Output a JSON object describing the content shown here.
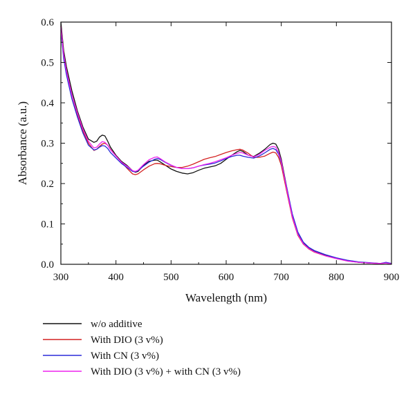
{
  "chart_data": {
    "type": "line",
    "title": "",
    "xlabel": "Wavelength (nm)",
    "ylabel": "Absorbance (a.u.)",
    "xlim": [
      300,
      900
    ],
    "ylim": [
      0.0,
      0.6
    ],
    "x_ticks": [
      "300",
      "400",
      "500",
      "600",
      "700",
      "800",
      "900"
    ],
    "y_ticks": [
      "0.0",
      "0.1",
      "0.2",
      "0.3",
      "0.4",
      "0.5",
      "0.6"
    ],
    "grid": false,
    "legend_position": "bottom",
    "x": [
      300,
      305,
      310,
      320,
      330,
      340,
      350,
      360,
      365,
      370,
      375,
      380,
      385,
      390,
      400,
      410,
      420,
      430,
      435,
      440,
      450,
      460,
      470,
      475,
      480,
      490,
      500,
      510,
      520,
      530,
      540,
      550,
      560,
      570,
      580,
      590,
      600,
      610,
      620,
      625,
      630,
      640,
      650,
      660,
      670,
      680,
      685,
      690,
      695,
      700,
      710,
      720,
      730,
      740,
      750,
      760,
      780,
      800,
      820,
      840,
      860,
      880,
      890,
      900
    ],
    "series": [
      {
        "name": "w/o additive",
        "color": "#111111",
        "values": [
          0.6,
          0.53,
          0.49,
          0.43,
          0.38,
          0.34,
          0.31,
          0.302,
          0.305,
          0.315,
          0.32,
          0.318,
          0.305,
          0.29,
          0.27,
          0.255,
          0.245,
          0.232,
          0.228,
          0.23,
          0.245,
          0.255,
          0.258,
          0.258,
          0.254,
          0.245,
          0.236,
          0.23,
          0.226,
          0.224,
          0.227,
          0.233,
          0.238,
          0.241,
          0.244,
          0.25,
          0.26,
          0.27,
          0.279,
          0.282,
          0.28,
          0.27,
          0.267,
          0.275,
          0.285,
          0.297,
          0.3,
          0.298,
          0.285,
          0.26,
          0.19,
          0.12,
          0.075,
          0.052,
          0.04,
          0.032,
          0.022,
          0.015,
          0.009,
          0.005,
          0.003,
          0.002,
          0.004,
          0.001
        ]
      },
      {
        "name": "With DIO (3 v%)",
        "color": "#d42020",
        "values": [
          0.59,
          0.52,
          0.48,
          0.42,
          0.37,
          0.33,
          0.3,
          0.282,
          0.285,
          0.292,
          0.298,
          0.3,
          0.295,
          0.285,
          0.268,
          0.253,
          0.238,
          0.224,
          0.222,
          0.224,
          0.234,
          0.243,
          0.249,
          0.25,
          0.249,
          0.245,
          0.242,
          0.24,
          0.24,
          0.243,
          0.248,
          0.254,
          0.26,
          0.264,
          0.267,
          0.272,
          0.277,
          0.281,
          0.284,
          0.285,
          0.283,
          0.275,
          0.265,
          0.265,
          0.268,
          0.275,
          0.278,
          0.276,
          0.265,
          0.245,
          0.18,
          0.115,
          0.072,
          0.05,
          0.038,
          0.03,
          0.021,
          0.014,
          0.008,
          0.005,
          0.003,
          0.002,
          0.003,
          0.001
        ]
      },
      {
        "name": "With CN (3 v%)",
        "color": "#2a2ad8",
        "values": [
          0.58,
          0.51,
          0.47,
          0.41,
          0.365,
          0.325,
          0.295,
          0.283,
          0.285,
          0.29,
          0.294,
          0.293,
          0.287,
          0.277,
          0.263,
          0.25,
          0.24,
          0.23,
          0.229,
          0.232,
          0.243,
          0.253,
          0.26,
          0.262,
          0.26,
          0.252,
          0.245,
          0.24,
          0.237,
          0.237,
          0.239,
          0.243,
          0.246,
          0.248,
          0.251,
          0.256,
          0.262,
          0.267,
          0.27,
          0.27,
          0.268,
          0.265,
          0.263,
          0.268,
          0.276,
          0.285,
          0.287,
          0.284,
          0.273,
          0.252,
          0.19,
          0.125,
          0.08,
          0.055,
          0.042,
          0.034,
          0.024,
          0.016,
          0.01,
          0.006,
          0.004,
          0.002,
          0.005,
          0.002
        ]
      },
      {
        "name": "With DIO (3 v%) + with CN (3 v%)",
        "color": "#ee22ee",
        "values": [
          0.59,
          0.52,
          0.48,
          0.42,
          0.375,
          0.335,
          0.305,
          0.288,
          0.29,
          0.298,
          0.304,
          0.302,
          0.295,
          0.284,
          0.268,
          0.253,
          0.243,
          0.232,
          0.23,
          0.233,
          0.247,
          0.259,
          0.265,
          0.266,
          0.262,
          0.253,
          0.246,
          0.24,
          0.237,
          0.237,
          0.239,
          0.243,
          0.247,
          0.25,
          0.254,
          0.259,
          0.264,
          0.27,
          0.275,
          0.277,
          0.276,
          0.27,
          0.266,
          0.272,
          0.282,
          0.29,
          0.292,
          0.29,
          0.277,
          0.255,
          0.185,
          0.118,
          0.074,
          0.051,
          0.039,
          0.031,
          0.021,
          0.014,
          0.008,
          0.005,
          0.003,
          0.002,
          0.003,
          0.001
        ]
      }
    ]
  }
}
